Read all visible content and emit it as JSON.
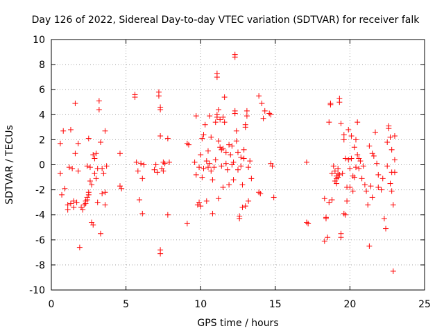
{
  "chart_data": {
    "type": "scatter",
    "title": "Day 126 of 2022, Sidereal Day-to-day VTEC variation (SDTVAR) for receiver falk",
    "xlabel": "GPS time / hours",
    "ylabel": "SDTVAR / TECUs",
    "xlim": [
      0,
      25
    ],
    "ylim": [
      -10,
      10
    ],
    "xticks": [
      0,
      5,
      10,
      15,
      20,
      25
    ],
    "yticks": [
      -10,
      -8,
      -6,
      -4,
      -2,
      0,
      2,
      4,
      6,
      8,
      10
    ],
    "grid": true,
    "marker": "plus",
    "color": "#ff0000",
    "series": [
      {
        "name": "SDTVAR",
        "points": [
          [
            0.6,
            1.7
          ],
          [
            0.6,
            -0.7
          ],
          [
            0.7,
            -2.4
          ],
          [
            0.8,
            2.7
          ],
          [
            0.9,
            -1.9
          ],
          [
            1.1,
            -3.2
          ],
          [
            1.1,
            -3.6
          ],
          [
            1.2,
            -0.2
          ],
          [
            1.3,
            2.8
          ],
          [
            1.3,
            -3.1
          ],
          [
            1.4,
            -0.3
          ],
          [
            1.5,
            -2.9
          ],
          [
            1.5,
            -3.4
          ],
          [
            1.6,
            4.9
          ],
          [
            1.6,
            0.9
          ],
          [
            1.7,
            -3.0
          ],
          [
            1.8,
            -0.5
          ],
          [
            1.8,
            1.7
          ],
          [
            1.9,
            -6.6
          ],
          [
            2.0,
            -3.4
          ],
          [
            2.1,
            -3.6
          ],
          [
            2.2,
            -3.2
          ],
          [
            2.3,
            -3.1
          ],
          [
            2.3,
            -2.9
          ],
          [
            2.4,
            -2.8
          ],
          [
            2.4,
            -2.6
          ],
          [
            2.5,
            -2.4
          ],
          [
            2.5,
            -2.2
          ],
          [
            2.4,
            -0.1
          ],
          [
            2.5,
            2.1
          ],
          [
            2.6,
            -1.3
          ],
          [
            2.6,
            -0.2
          ],
          [
            2.7,
            -1.6
          ],
          [
            2.7,
            -4.6
          ],
          [
            2.8,
            -4.8
          ],
          [
            2.8,
            0.8
          ],
          [
            2.9,
            0.5
          ],
          [
            2.9,
            -0.7
          ],
          [
            3.0,
            -1.1
          ],
          [
            3.0,
            0.9
          ],
          [
            3.1,
            -3.0
          ],
          [
            3.1,
            -0.3
          ],
          [
            3.2,
            5.1
          ],
          [
            3.2,
            4.4
          ],
          [
            3.3,
            1.8
          ],
          [
            3.3,
            -5.5
          ],
          [
            3.4,
            -2.3
          ],
          [
            3.4,
            -0.3
          ],
          [
            3.5,
            -0.7
          ],
          [
            3.6,
            2.7
          ],
          [
            3.6,
            -2.2
          ],
          [
            3.6,
            -3.2
          ],
          [
            3.7,
            -0.1
          ],
          [
            4.6,
            0.9
          ],
          [
            4.6,
            -1.7
          ],
          [
            4.7,
            -1.9
          ],
          [
            5.6,
            5.6
          ],
          [
            5.6,
            5.4
          ],
          [
            5.7,
            0.2
          ],
          [
            5.8,
            -0.5
          ],
          [
            5.9,
            -2.8
          ],
          [
            6.0,
            0.1
          ],
          [
            6.1,
            -3.9
          ],
          [
            6.1,
            -1.1
          ],
          [
            6.2,
            0.0
          ],
          [
            6.9,
            -0.4
          ],
          [
            7.0,
            0.0
          ],
          [
            7.1,
            -0.6
          ],
          [
            7.2,
            5.8
          ],
          [
            7.2,
            5.5
          ],
          [
            7.3,
            4.6
          ],
          [
            7.3,
            4.4
          ],
          [
            7.3,
            2.3
          ],
          [
            7.3,
            -6.8
          ],
          [
            7.3,
            -7.1
          ],
          [
            7.4,
            -0.3
          ],
          [
            7.5,
            0.2
          ],
          [
            7.5,
            -0.5
          ],
          [
            7.6,
            0.1
          ],
          [
            7.8,
            2.1
          ],
          [
            7.8,
            -4.0
          ],
          [
            7.9,
            0.2
          ],
          [
            9.1,
            -4.7
          ],
          [
            9.1,
            1.7
          ],
          [
            9.2,
            1.6
          ],
          [
            9.6,
            0.2
          ],
          [
            9.7,
            3.9
          ],
          [
            9.7,
            -0.8
          ],
          [
            9.8,
            -3.2
          ],
          [
            9.9,
            -0.2
          ],
          [
            9.9,
            -3.0
          ],
          [
            10.0,
            0.8
          ],
          [
            10.0,
            -3.3
          ],
          [
            10.1,
            2.1
          ],
          [
            10.1,
            -1.0
          ],
          [
            10.2,
            -0.3
          ],
          [
            10.2,
            2.4
          ],
          [
            10.3,
            3.2
          ],
          [
            10.4,
            0.3
          ],
          [
            10.4,
            -2.9
          ],
          [
            10.5,
            -0.2
          ],
          [
            10.5,
            1.1
          ],
          [
            10.6,
            3.9
          ],
          [
            10.6,
            0.1
          ],
          [
            10.7,
            -0.5
          ],
          [
            10.7,
            2.2
          ],
          [
            10.8,
            -3.9
          ],
          [
            10.8,
            -1.2
          ],
          [
            10.9,
            -0.2
          ],
          [
            11.0,
            0.4
          ],
          [
            11.0,
            3.4
          ],
          [
            11.1,
            4.0
          ],
          [
            11.1,
            3.8
          ],
          [
            11.1,
            7.3
          ],
          [
            11.1,
            7.0
          ],
          [
            11.2,
            4.4
          ],
          [
            11.2,
            1.9
          ],
          [
            11.2,
            -2.7
          ],
          [
            11.3,
            3.6
          ],
          [
            11.3,
            1.4
          ],
          [
            11.4,
            1.2
          ],
          [
            11.4,
            -0.1
          ],
          [
            11.5,
            3.8
          ],
          [
            11.5,
            1.3
          ],
          [
            11.5,
            -1.8
          ],
          [
            11.6,
            3.4
          ],
          [
            11.6,
            5.4
          ],
          [
            11.7,
            1.0
          ],
          [
            11.7,
            0.1
          ],
          [
            11.8,
            -0.4
          ],
          [
            11.9,
            -1.6
          ],
          [
            11.9,
            1.6
          ],
          [
            12.0,
            0.8
          ],
          [
            12.1,
            1.5
          ],
          [
            12.1,
            0.0
          ],
          [
            12.2,
            -1.2
          ],
          [
            12.2,
            0.2
          ],
          [
            12.3,
            4.3
          ],
          [
            12.3,
            4.1
          ],
          [
            12.3,
            8.8
          ],
          [
            12.3,
            8.6
          ],
          [
            12.4,
            2.7
          ],
          [
            12.4,
            1.9
          ],
          [
            12.5,
            -0.4
          ],
          [
            12.5,
            1.0
          ],
          [
            12.6,
            -4.1
          ],
          [
            12.6,
            -4.3
          ],
          [
            12.7,
            0.6
          ],
          [
            12.7,
            -0.1
          ],
          [
            12.8,
            -1.6
          ],
          [
            12.8,
            -3.4
          ],
          [
            12.9,
            1.2
          ],
          [
            12.9,
            0.5
          ],
          [
            13.0,
            -3.3
          ],
          [
            13.0,
            3.2
          ],
          [
            13.0,
            3.0
          ],
          [
            13.1,
            4.3
          ],
          [
            13.1,
            3.9
          ],
          [
            13.2,
            -0.2
          ],
          [
            13.2,
            -2.9
          ],
          [
            13.3,
            0.3
          ],
          [
            13.4,
            -1.1
          ],
          [
            13.9,
            5.5
          ],
          [
            13.9,
            -2.2
          ],
          [
            14.0,
            -2.3
          ],
          [
            14.1,
            4.9
          ],
          [
            14.2,
            3.7
          ],
          [
            14.3,
            4.3
          ],
          [
            14.6,
            4.1
          ],
          [
            14.7,
            4.0
          ],
          [
            14.7,
            0.1
          ],
          [
            14.8,
            -0.1
          ],
          [
            14.9,
            -2.6
          ],
          [
            17.1,
            0.2
          ],
          [
            17.1,
            -4.6
          ],
          [
            17.2,
            -4.7
          ],
          [
            18.3,
            -6.1
          ],
          [
            18.3,
            -2.7
          ],
          [
            18.4,
            -4.2
          ],
          [
            18.4,
            -4.3
          ],
          [
            18.5,
            -5.8
          ],
          [
            18.6,
            3.4
          ],
          [
            18.6,
            -3.0
          ],
          [
            18.7,
            4.9
          ],
          [
            18.7,
            4.8
          ],
          [
            18.8,
            -2.8
          ],
          [
            18.8,
            -0.7
          ],
          [
            18.9,
            -0.1
          ],
          [
            19.0,
            -1.3
          ],
          [
            19.0,
            -0.5
          ],
          [
            19.1,
            -1.1
          ],
          [
            19.1,
            -0.9
          ],
          [
            19.1,
            -1.5
          ],
          [
            19.2,
            -0.7
          ],
          [
            19.2,
            -0.3
          ],
          [
            19.2,
            -1.0
          ],
          [
            19.3,
            -0.8
          ],
          [
            19.3,
            5.3
          ],
          [
            19.3,
            5.0
          ],
          [
            19.4,
            -5.5
          ],
          [
            19.4,
            -5.8
          ],
          [
            19.4,
            3.3
          ],
          [
            19.5,
            -0.7
          ],
          [
            19.6,
            2.4
          ],
          [
            19.6,
            2.0
          ],
          [
            19.6,
            -3.9
          ],
          [
            19.7,
            0.5
          ],
          [
            19.7,
            -4.0
          ],
          [
            19.8,
            -2.9
          ],
          [
            19.8,
            -1.8
          ],
          [
            19.9,
            0.4
          ],
          [
            19.9,
            2.8
          ],
          [
            20.0,
            -0.3
          ],
          [
            20.0,
            -1.8
          ],
          [
            20.1,
            2.3
          ],
          [
            20.1,
            0.5
          ],
          [
            20.2,
            -2.1
          ],
          [
            20.2,
            -0.9
          ],
          [
            20.3,
            1.4
          ],
          [
            20.3,
            -1.0
          ],
          [
            20.4,
            2.0
          ],
          [
            20.4,
            -0.2
          ],
          [
            20.5,
            0.8
          ],
          [
            20.5,
            3.4
          ],
          [
            20.6,
            0.5
          ],
          [
            20.6,
            -0.3
          ],
          [
            20.7,
            0.3
          ],
          [
            20.8,
            -1.1
          ],
          [
            20.9,
            -0.1
          ],
          [
            21.0,
            -1.6
          ],
          [
            21.1,
            -2.1
          ],
          [
            21.2,
            -3.2
          ],
          [
            21.3,
            1.5
          ],
          [
            21.3,
            -6.5
          ],
          [
            21.4,
            -1.7
          ],
          [
            21.5,
            0.9
          ],
          [
            21.5,
            -2.6
          ],
          [
            21.6,
            0.7
          ],
          [
            21.7,
            2.6
          ],
          [
            21.8,
            0.1
          ],
          [
            21.9,
            -0.8
          ],
          [
            21.9,
            -1.8
          ],
          [
            22.1,
            -2.0
          ],
          [
            22.2,
            -1.1
          ],
          [
            22.3,
            -4.3
          ],
          [
            22.4,
            -5.1
          ],
          [
            22.5,
            1.8
          ],
          [
            22.5,
            -0.1
          ],
          [
            22.6,
            3.1
          ],
          [
            22.6,
            2.9
          ],
          [
            22.7,
            2.2
          ],
          [
            22.7,
            -1.5
          ],
          [
            22.8,
            1.2
          ],
          [
            22.8,
            -2.1
          ],
          [
            22.8,
            -0.6
          ],
          [
            22.9,
            -3.2
          ],
          [
            22.9,
            -8.5
          ],
          [
            23.0,
            0.4
          ],
          [
            23.0,
            -0.6
          ],
          [
            23.0,
            2.3
          ]
        ]
      }
    ]
  }
}
